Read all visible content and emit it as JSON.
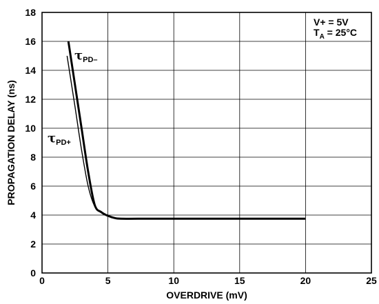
{
  "chart_data": {
    "type": "line",
    "xlabel": "OVERDRIVE (mV)",
    "ylabel": "PROPAGATION DELAY (ns)",
    "xlim": [
      0,
      25
    ],
    "ylim": [
      0,
      18
    ],
    "x_ticks": [
      "0",
      "5",
      "10",
      "15",
      "20",
      "25"
    ],
    "y_ticks": [
      "0",
      "2",
      "4",
      "6",
      "8",
      "10",
      "12",
      "14",
      "16",
      "18"
    ],
    "grid": true,
    "annotation": {
      "line1": "V+ = 5V",
      "line2_main": "T",
      "line2_sub": "A",
      "line2_rest": " = 25°C"
    },
    "series": [
      {
        "name": "τPD–",
        "label_main": "τ",
        "label_sub": "PD–",
        "x": [
          2.0,
          2.5,
          3.0,
          3.5,
          4.0,
          4.5,
          5.0,
          5.5,
          6.0,
          8.0,
          10.0,
          15.0,
          20.0
        ],
        "y": [
          16.0,
          13.0,
          10.0,
          7.0,
          4.7,
          4.2,
          3.95,
          3.8,
          3.75,
          3.75,
          3.75,
          3.75,
          3.75
        ]
      },
      {
        "name": "τPD+",
        "label_main": "τ",
        "label_sub": "PD+",
        "x": [
          1.9,
          2.5,
          3.0,
          3.5,
          4.0,
          4.5,
          5.0,
          5.5,
          6.0,
          8.0,
          10.0,
          15.0,
          20.0
        ],
        "y": [
          15.0,
          11.5,
          8.5,
          6.0,
          4.6,
          4.2,
          3.95,
          3.8,
          3.75,
          3.75,
          3.75,
          3.75,
          3.75
        ]
      }
    ],
    "colors": {
      "line": "#000000",
      "grid": "#000000",
      "background": "#ffffff"
    }
  }
}
